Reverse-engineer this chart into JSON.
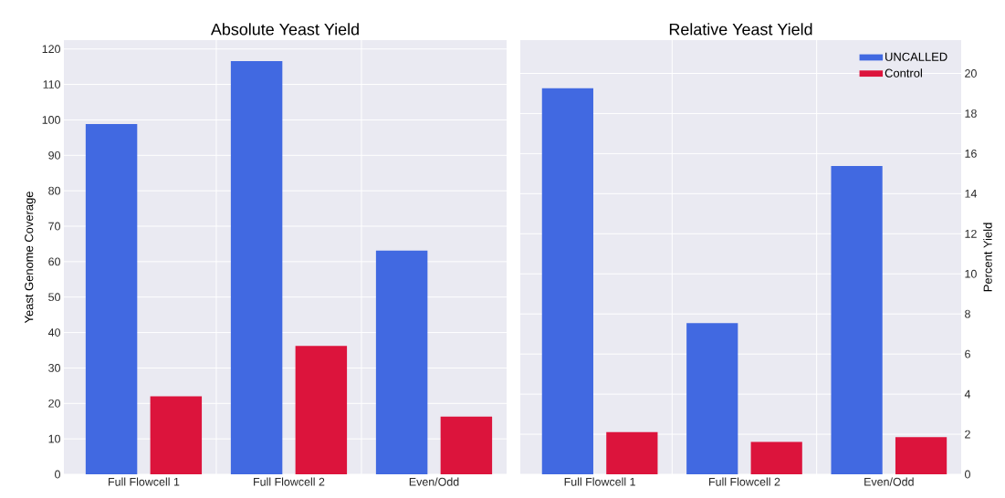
{
  "chart_data": [
    {
      "type": "bar",
      "title": "Absolute Yeast Yield",
      "ylabel": "Yeast Genome Coverage",
      "categories": [
        "Full Flowcell 1",
        "Full Flowcell 2",
        "Even/Odd"
      ],
      "series": [
        {
          "color": "#4169e1",
          "values": [
            98.8,
            116.6,
            63.1
          ]
        },
        {
          "color": "#dc143c",
          "values": [
            22.0,
            36.2,
            16.3
          ]
        }
      ],
      "ylim": [
        0,
        122.5
      ],
      "yticks": [
        0,
        10,
        20,
        30,
        40,
        50,
        60,
        70,
        80,
        90,
        100,
        110,
        120
      ],
      "grid": true
    },
    {
      "type": "bar",
      "title": "Relative Yeast Yield",
      "ylabel": "Percent Yield",
      "categories": [
        "Full Flowcell 1",
        "Full Flowcell 2",
        "Even/Odd"
      ],
      "series": [
        {
          "name": "UNCALLED",
          "color": "#4169e1",
          "values": [
            19.26,
            7.54,
            15.38
          ]
        },
        {
          "name": "Control",
          "color": "#dc143c",
          "values": [
            2.11,
            1.62,
            1.85
          ]
        }
      ],
      "ylim": [
        0,
        21.66
      ],
      "yticks": [
        0,
        2,
        4,
        6,
        8,
        10,
        12,
        14,
        16,
        18,
        20
      ],
      "grid": true,
      "legend": "top right"
    }
  ]
}
